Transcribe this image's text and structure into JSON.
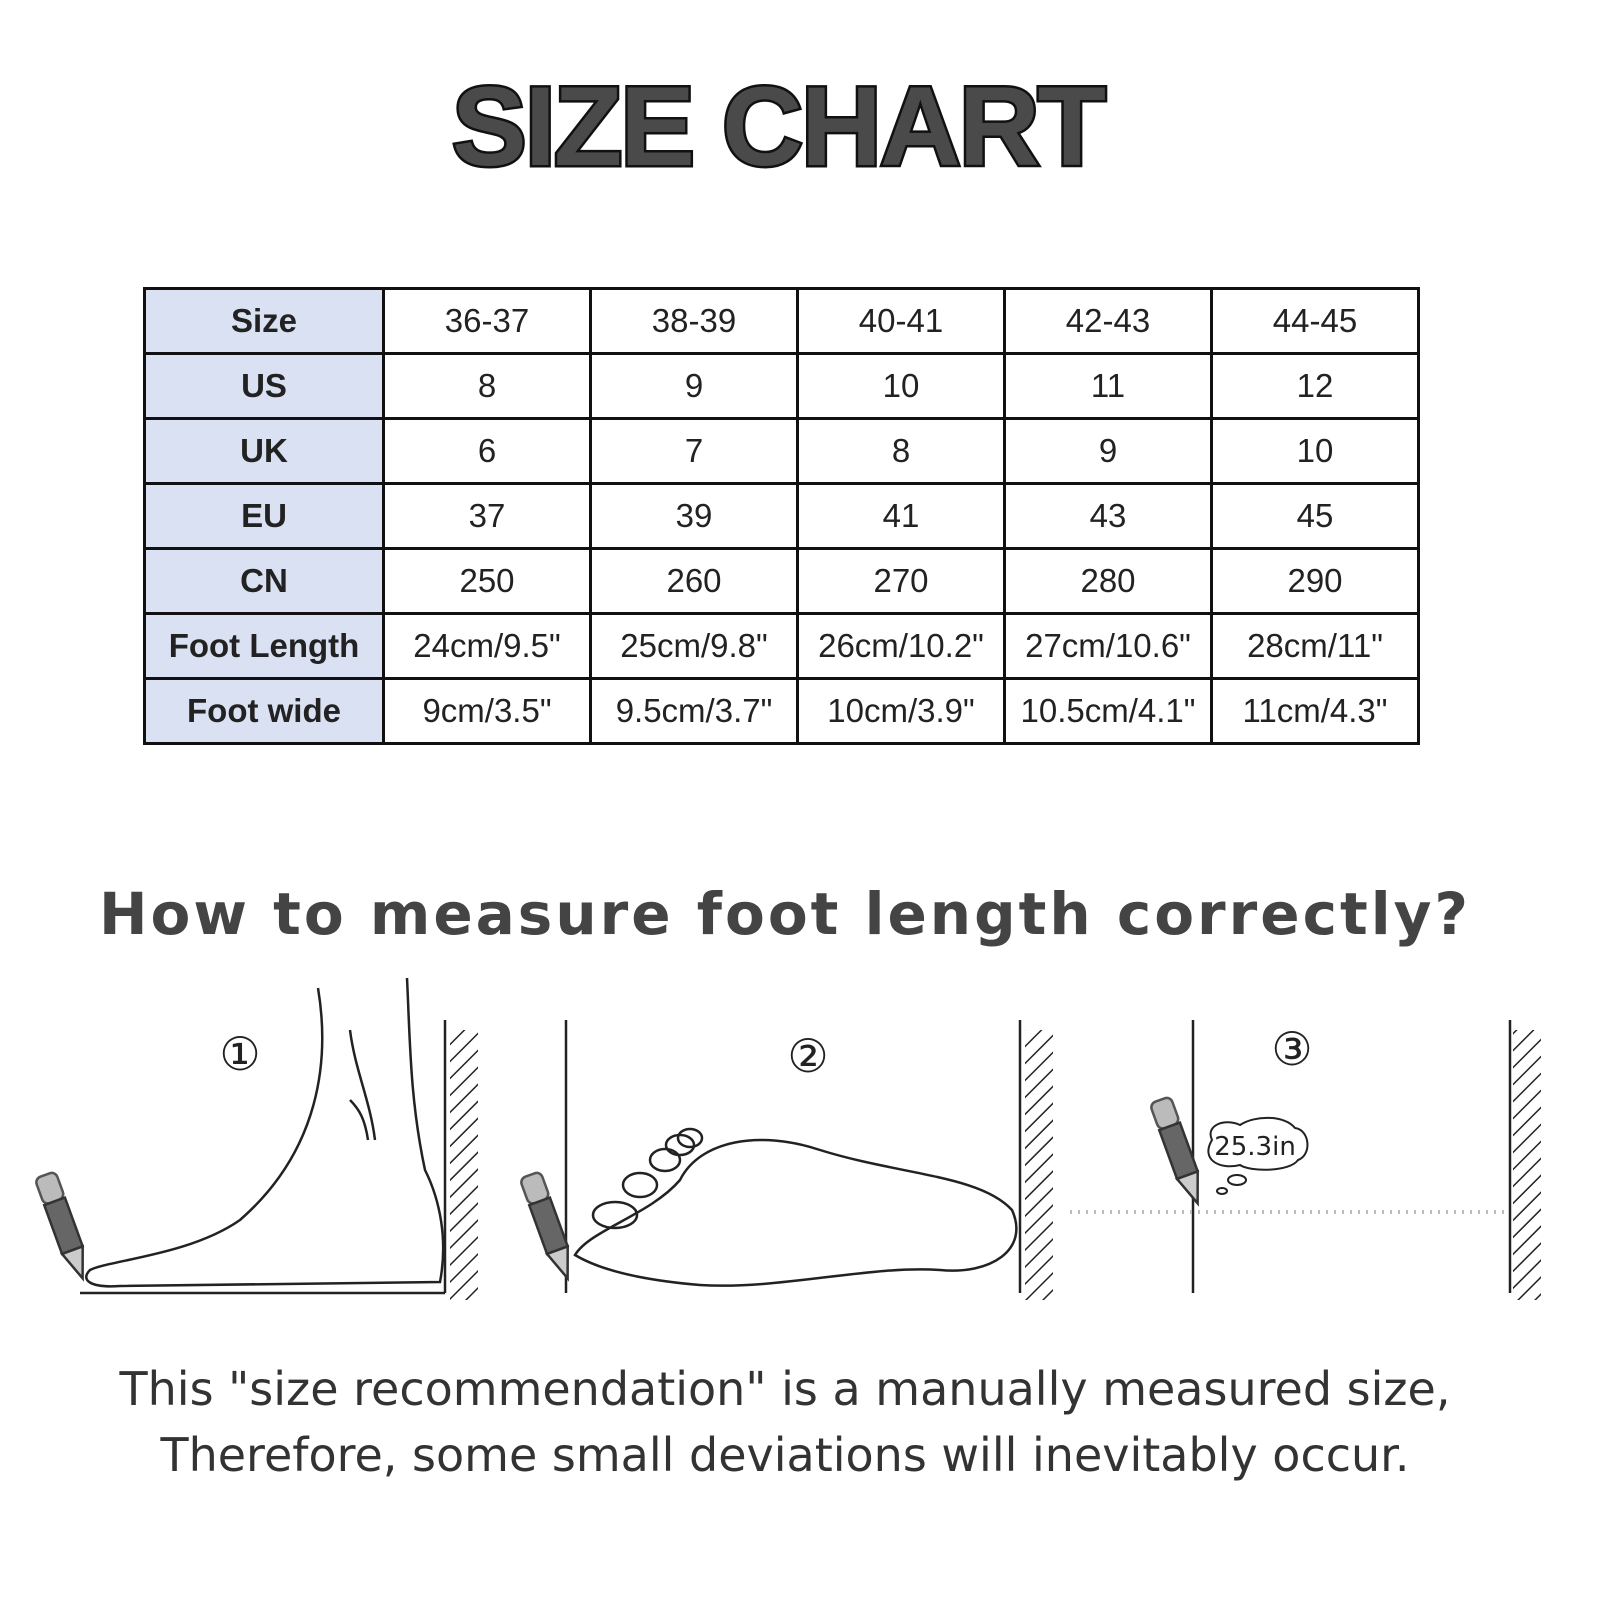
{
  "title": "SIZE CHART",
  "table": {
    "rows": [
      {
        "label": "Size",
        "values": [
          "36-37",
          "38-39",
          "40-41",
          "42-43",
          "44-45"
        ]
      },
      {
        "label": "US",
        "values": [
          "8",
          "9",
          "10",
          "11",
          "12"
        ]
      },
      {
        "label": "UK",
        "values": [
          "6",
          "7",
          "8",
          "9",
          "10"
        ]
      },
      {
        "label": "EU",
        "values": [
          "37",
          "39",
          "41",
          "43",
          "45"
        ]
      },
      {
        "label": "CN",
        "values": [
          "250",
          "260",
          "270",
          "280",
          "290"
        ]
      },
      {
        "label": "Foot Length",
        "values": [
          "24cm/9.5\"",
          "25cm/9.8\"",
          "26cm/10.2\"",
          "27cm/10.6\"",
          "28cm/11\""
        ]
      },
      {
        "label": "Foot wide",
        "values": [
          "9cm/3.5\"",
          "9.5cm/3.7\"",
          "10cm/3.9\"",
          "10.5cm/4.1\"",
          "11cm/4.3\""
        ]
      }
    ],
    "header_color": "#d9e1f2"
  },
  "measure": {
    "heading": "How to measure foot length correctly?",
    "steps": [
      "①",
      "②",
      "③"
    ],
    "bubble_text": "25.3in"
  },
  "note": {
    "line1": "This \"size recommendation\" is a manually measured size,",
    "line2": "Therefore, some small deviations will inevitably occur."
  }
}
